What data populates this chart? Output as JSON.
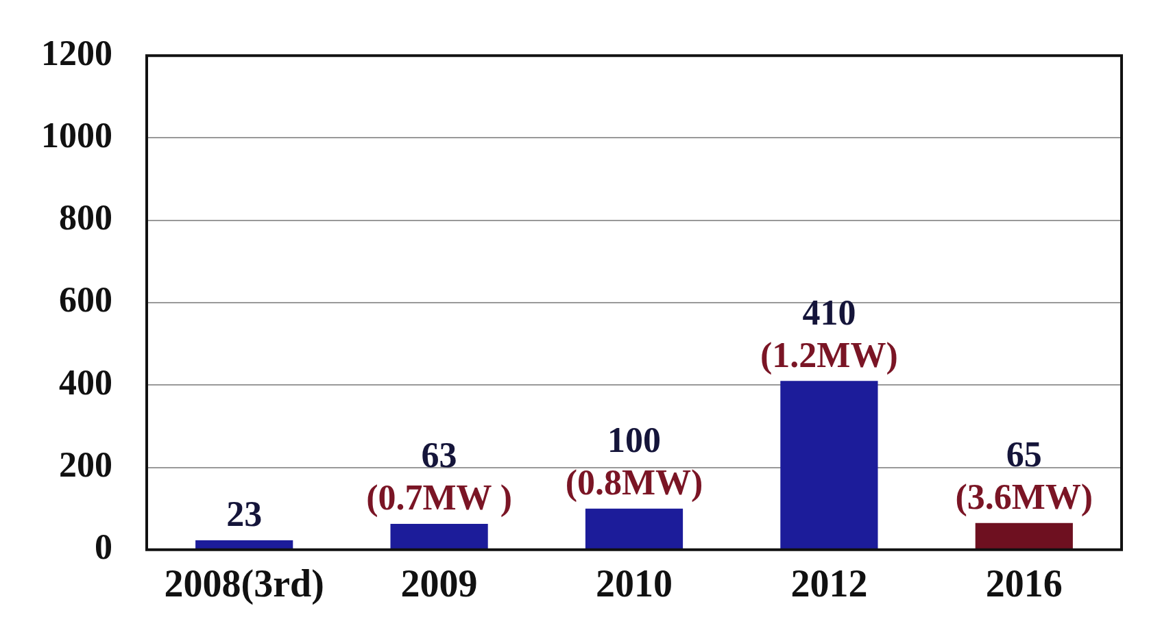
{
  "chart_data": {
    "type": "bar",
    "categories": [
      "2008(3rd)",
      "2009",
      "2010",
      "2012",
      "2016"
    ],
    "values": [
      23,
      63,
      100,
      410,
      65
    ],
    "colors": [
      "#1c1c9a",
      "#1c1c9a",
      "#1c1c9a",
      "#1c1c9a",
      "#6e1020"
    ],
    "data_labels": true,
    "annotations": [
      {
        "text": "(0.7MW )",
        "x": "2009",
        "y": 63
      },
      {
        "text": "(0.8MW)",
        "x": "2010",
        "y": 100
      },
      {
        "text": "(1.2MW)",
        "x": "2012",
        "y": 410
      },
      {
        "text": "(3.6MW)",
        "x": "2016",
        "y": 65
      }
    ],
    "ylim": [
      0,
      1200
    ],
    "yticks": [
      0,
      200,
      400,
      600,
      800,
      1000,
      1200
    ],
    "grid": "y",
    "legend": false
  }
}
